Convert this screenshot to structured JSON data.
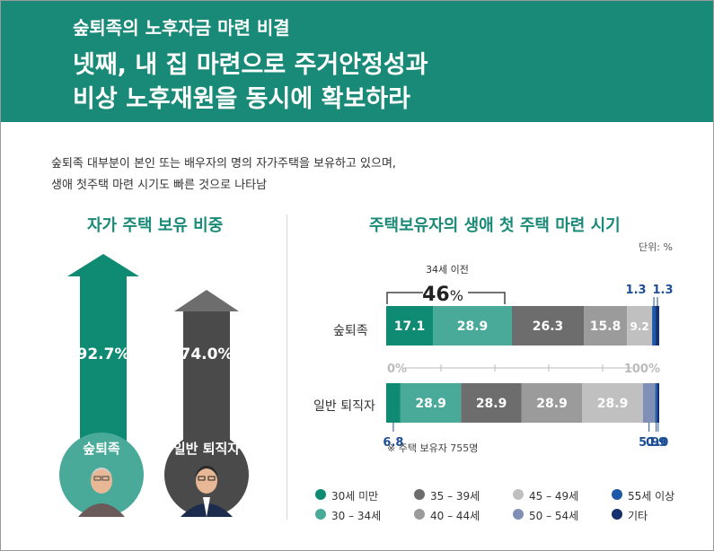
{
  "header": {
    "subtitle": "숲퇴족의 노후자금 마련 비결",
    "title_line1": "넷째, 내 집 마련으로 주거안정성과",
    "title_line2": "비상 노후재원을 동시에 확보하라"
  },
  "intro": {
    "line1": "숲퇴족 대부분이 본인 또는 배우자의 명의 자가주택을 보유하고 있으며,",
    "line2": "생애 첫주택 마련 시기도 빠른 것으로 나타남"
  },
  "colors": {
    "header_bg": "#1a8a78",
    "teal_dark": "#0f8a73",
    "teal_light": "#4aaa9a",
    "gray_dark": "#6d6d6d",
    "gray_mid": "#9b9b9b",
    "gray_light": "#c0c0c0",
    "blue_gray": "#7f8fb5",
    "blue": "#1e5aa8",
    "navy": "#14306e"
  },
  "left_chart": {
    "title": "자가 주택 보유 비중",
    "groups": [
      {
        "name": "숲퇴족",
        "value": 92.7,
        "label": "92.7%"
      },
      {
        "name": "일반 퇴직자",
        "value": 74.0,
        "label": "74.0%"
      }
    ]
  },
  "chart_data": {
    "type": "stacked-bar-horizontal",
    "title": "주택보유자의 생애 첫 주택 마련 시기",
    "unit_label": "단위: %",
    "note": "※ 주택 보유자 755명",
    "axis": {
      "min_label": "0%",
      "max_label": "100%"
    },
    "bracket": {
      "caption": "34세 이전",
      "value_number": "46",
      "value_suffix": "%"
    },
    "segments": [
      "30세 미만",
      "30 – 34세",
      "35 – 39세",
      "40 – 44세",
      "45 – 49세",
      "50 – 54세",
      "55세 이상",
      "기타"
    ],
    "rows": [
      {
        "label": "숲퇴족",
        "values": [
          17.1,
          28.9,
          26.3,
          15.8,
          9.2,
          0,
          1.3,
          1.3
        ],
        "labels": [
          "17.1",
          "28.9",
          "26.3",
          "15.8",
          "9.2",
          "",
          "1.3",
          "1.3"
        ]
      },
      {
        "label": "일반 퇴직자",
        "values": [
          6.8,
          28.9,
          28.9,
          28.9,
          28.9,
          5.9,
          0.9,
          1.0
        ],
        "labels": [
          "6.8",
          "28.9",
          "28.9",
          "28.9",
          "28.9",
          "5.9",
          "0.9",
          "1.0"
        ]
      }
    ]
  },
  "legend": [
    {
      "label": "30세 미만",
      "color": "#0f8a73"
    },
    {
      "label": "35 – 39세",
      "color": "#6d6d6d"
    },
    {
      "label": "45 – 49세",
      "color": "#c0c0c0"
    },
    {
      "label": "55세 이상",
      "color": "#1e5aa8"
    },
    {
      "label": "30 – 34세",
      "color": "#4aaa9a"
    },
    {
      "label": "40 – 44세",
      "color": "#9b9b9b"
    },
    {
      "label": "50 – 54세",
      "color": "#7f8fb5"
    },
    {
      "label": "기타",
      "color": "#14306e"
    }
  ]
}
